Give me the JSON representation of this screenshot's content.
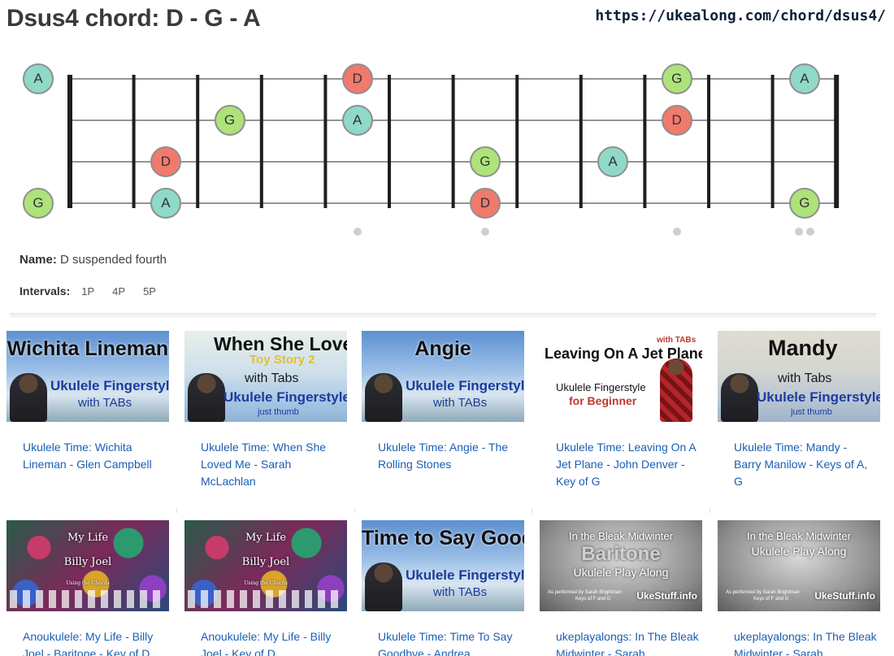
{
  "page": {
    "title": "Dsus4 chord: D - G - A",
    "url": "https://ukealong.com/chord/dsus4/"
  },
  "colors": {
    "D": "#f07a6c",
    "G": "#aee27a",
    "A": "#8fd9c8"
  },
  "fretboard": {
    "strings": 4,
    "frets": 12,
    "notes": [
      {
        "string": 1,
        "fret": 0,
        "label": "A"
      },
      {
        "string": 1,
        "fret": 5,
        "label": "D"
      },
      {
        "string": 1,
        "fret": 10,
        "label": "G"
      },
      {
        "string": 1,
        "fret": 12,
        "label": "A"
      },
      {
        "string": 2,
        "fret": 3,
        "label": "G"
      },
      {
        "string": 2,
        "fret": 5,
        "label": "A"
      },
      {
        "string": 2,
        "fret": 10,
        "label": "D"
      },
      {
        "string": 3,
        "fret": 2,
        "label": "D"
      },
      {
        "string": 3,
        "fret": 7,
        "label": "G"
      },
      {
        "string": 3,
        "fret": 9,
        "label": "A"
      },
      {
        "string": 4,
        "fret": 0,
        "label": "G"
      },
      {
        "string": 4,
        "fret": 2,
        "label": "A"
      },
      {
        "string": 4,
        "fret": 7,
        "label": "D"
      },
      {
        "string": 4,
        "fret": 12,
        "label": "G"
      }
    ],
    "marker_frets": [
      5,
      7,
      10,
      12
    ]
  },
  "info": {
    "name_label": "Name:",
    "name_value": "D suspended fourth",
    "intervals_label": "Intervals:",
    "intervals": [
      "1P",
      "4P",
      "5P"
    ]
  },
  "videos": [
    {
      "title": "Ukulele Time: Wichita Lineman - Glen Campbell",
      "thumb": {
        "style": "blue",
        "lines": [
          "Wichita Lineman",
          "Ukulele Fingerstyle",
          "with TABs"
        ]
      }
    },
    {
      "title": "Ukulele Time: When She Loved Me - Sarah McLachlan",
      "thumb": {
        "style": "blue",
        "lines": [
          "When She Loved Me",
          "Toy Story 2",
          "with Tabs",
          "Ukulele Fingerstyle",
          "just thumb"
        ]
      }
    },
    {
      "title": "Ukulele Time: Angie - The Rolling Stones",
      "thumb": {
        "style": "blue",
        "lines": [
          "Angie",
          "Ukulele Fingerstyle",
          "with TABs"
        ]
      }
    },
    {
      "title": "Ukulele Time: Leaving On A Jet Plane - John Denver - Key of G",
      "thumb": {
        "style": "white",
        "lines": [
          "Leaving On A Jet Plane",
          "with TABs",
          "Ukulele Fingerstyle",
          "for Beginner"
        ]
      }
    },
    {
      "title": "Ukulele Time: Mandy - Barry Manilow - Keys of A, G",
      "thumb": {
        "style": "blue",
        "lines": [
          "Mandy",
          "with Tabs",
          "Ukulele Fingerstyle",
          "just thumb"
        ]
      }
    },
    {
      "title": "Anoukulele: My Life - Billy Joel - Baritone - Key of D",
      "thumb": {
        "style": "mosaic",
        "lines": [
          "My Life",
          "Billy Joel",
          "Using the Chords"
        ]
      }
    },
    {
      "title": "Anoukulele: My Life - Billy Joel - Key of D",
      "thumb": {
        "style": "mosaic",
        "lines": [
          "My Life",
          "Billy Joel",
          "Using the Chords"
        ]
      }
    },
    {
      "title": "Ukulele Time: Time To Say Goodbye - Andrea",
      "thumb": {
        "style": "blue",
        "lines": [
          "Time to Say Goodbye",
          "Ukulele Fingerstyle",
          "with TABs"
        ]
      }
    },
    {
      "title": "ukeplayalongs: In The Bleak Midwinter - Sarah",
      "thumb": {
        "style": "frost",
        "lines": [
          "In the Bleak Midwinter",
          "Baritone",
          "Ukulele Play Along",
          "As performed by Sarah Brightman",
          "Keys of F and G",
          "UkeStuff.info"
        ]
      }
    },
    {
      "title": "ukeplayalongs: In The Bleak Midwinter - Sarah",
      "thumb": {
        "style": "frost",
        "lines": [
          "In the Bleak Midwinter",
          "Ukulele Play Along",
          "As performed by Sarah Brightman",
          "Keys of F and G",
          "UkeStuff.info"
        ]
      }
    }
  ]
}
